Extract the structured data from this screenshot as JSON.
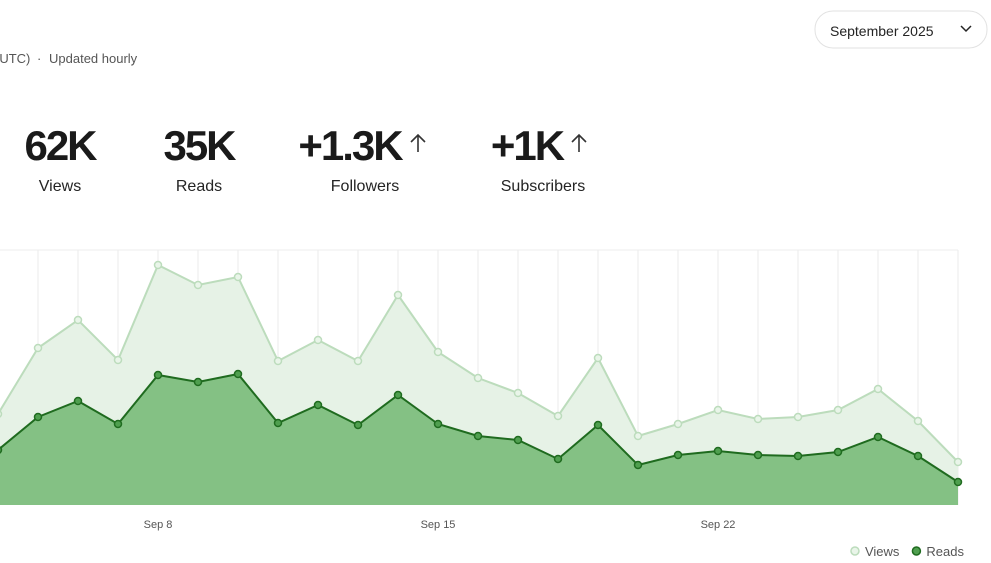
{
  "header": {
    "note_tz": "(UTC)",
    "note_sep": "·",
    "note_update": "Updated hourly",
    "period": "September 2025"
  },
  "stats": [
    {
      "value": "62K",
      "label": "Views"
    },
    {
      "value": "35K",
      "label": "Reads"
    },
    {
      "value": "+1.3K",
      "label": "Followers"
    },
    {
      "value": "+1K",
      "label": "Subscribers"
    }
  ],
  "chart_data": {
    "type": "area",
    "categories": [
      null,
      null,
      null,
      null,
      "Sep 8",
      null,
      null,
      null,
      null,
      null,
      null,
      "Sep 15",
      null,
      null,
      null,
      null,
      null,
      null,
      "Sep 22",
      null,
      null,
      null,
      null,
      null,
      null
    ],
    "ylim": [
      0,
      255
    ],
    "grid": true,
    "legend": "bottom-right",
    "series": [
      {
        "name": "Views",
        "color": "#bcdcbc",
        "fill": "#e6f2e6",
        "dot": "#e9f5e9",
        "values": [
          91,
          157,
          185,
          145,
          240,
          220,
          228,
          144,
          165,
          144,
          210,
          153,
          127,
          112,
          89,
          147,
          69,
          81,
          95,
          86,
          88,
          95,
          116,
          84,
          43
        ]
      },
      {
        "name": "Reads",
        "color": "#1f6b1f",
        "fill": "#84c184",
        "dot": "#4f9f4f",
        "values": [
          55,
          88,
          104,
          81,
          130,
          123,
          131,
          82,
          100,
          80,
          110,
          81,
          69,
          65,
          46,
          80,
          40,
          50,
          54,
          50,
          49,
          53,
          68,
          49,
          23
        ]
      }
    ]
  }
}
